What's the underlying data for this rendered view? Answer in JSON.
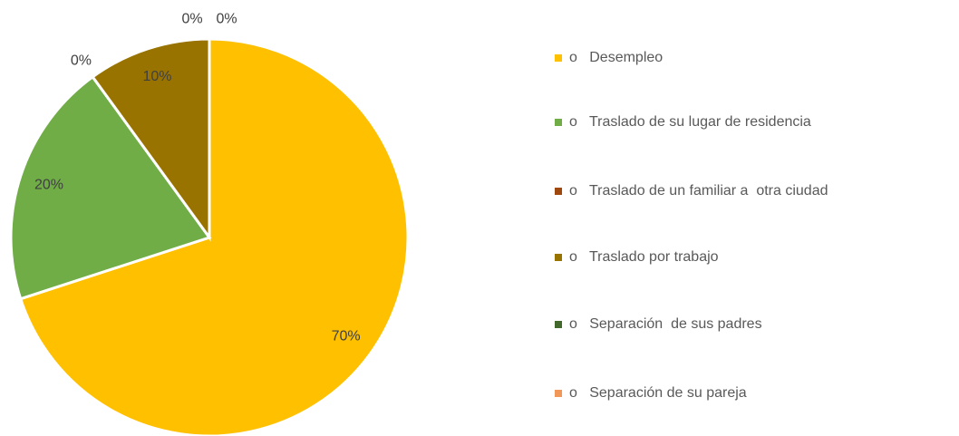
{
  "chart_data": {
    "type": "pie",
    "categories": [
      "o   Desempleo",
      "o   Traslado de su lugar de residencia",
      "o   Traslado de un familiar a  otra ciudad",
      "o   Traslado por trabajo",
      "o   Separación  de sus padres",
      "o   Separación de su pareja"
    ],
    "values": [
      70,
      20,
      0,
      10,
      0,
      0
    ],
    "value_labels": [
      "70%",
      "20%",
      "0%",
      "10%",
      "0%",
      "0%"
    ],
    "colors": [
      "#FFC000",
      "#70AD47",
      "#9E480E",
      "#997300",
      "#43682B",
      "#F1975A"
    ],
    "legend": "right"
  }
}
